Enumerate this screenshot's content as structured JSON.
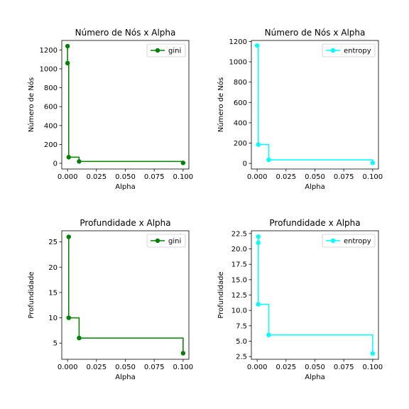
{
  "chart_data": [
    {
      "type": "line",
      "step": "post",
      "title": "Número de Nós x Alpha",
      "xlabel": "Alpha",
      "ylabel": "Número de Nós",
      "xlim": [
        -0.005,
        0.105
      ],
      "ylim": [
        -60,
        1300
      ],
      "xticks": [
        0.0,
        0.025,
        0.05,
        0.075,
        0.1
      ],
      "xtick_labels": [
        "0.000",
        "0.025",
        "0.050",
        "0.075",
        "0.100"
      ],
      "yticks": [
        0,
        200,
        400,
        600,
        800,
        1000,
        1200
      ],
      "ytick_labels": [
        "0",
        "200",
        "400",
        "600",
        "800",
        "1000",
        "1200"
      ],
      "legend": "top-right",
      "series": [
        {
          "name": "gini",
          "color": "#008000",
          "x": [
            0.0,
            0.0,
            0.001,
            0.01,
            0.1
          ],
          "y": [
            1240,
            1060,
            65,
            20,
            5
          ]
        }
      ]
    },
    {
      "type": "line",
      "step": "post",
      "title": "Número de Nós x Alpha",
      "xlabel": "Alpha",
      "ylabel": "Número de Nós",
      "xlim": [
        -0.005,
        0.105
      ],
      "ylim": [
        -55,
        1210
      ],
      "xticks": [
        0.0,
        0.025,
        0.05,
        0.075,
        0.1
      ],
      "xtick_labels": [
        "0.000",
        "0.025",
        "0.050",
        "0.075",
        "0.100"
      ],
      "yticks": [
        0,
        200,
        400,
        600,
        800,
        1000,
        1200
      ],
      "ytick_labels": [
        "0",
        "200",
        "400",
        "600",
        "800",
        "1000",
        "1200"
      ],
      "legend": "top-right",
      "series": [
        {
          "name": "entropy",
          "color": "#00ffff",
          "x": [
            0.0,
            0.001,
            0.01,
            0.1
          ],
          "y": [
            1160,
            185,
            35,
            5
          ]
        }
      ]
    },
    {
      "type": "line",
      "step": "post",
      "title": "Profundidade x Alpha",
      "xlabel": "Alpha",
      "ylabel": "Profundidade",
      "xlim": [
        -0.005,
        0.105
      ],
      "ylim": [
        1.8,
        27.2
      ],
      "xticks": [
        0.0,
        0.025,
        0.05,
        0.075,
        0.1
      ],
      "xtick_labels": [
        "0.000",
        "0.025",
        "0.050",
        "0.075",
        "0.100"
      ],
      "yticks": [
        5,
        10,
        15,
        20,
        25
      ],
      "ytick_labels": [
        "5",
        "10",
        "15",
        "20",
        "25"
      ],
      "legend": "top-right",
      "series": [
        {
          "name": "gini",
          "color": "#008000",
          "x": [
            0.001,
            0.001,
            0.01,
            0.1
          ],
          "y": [
            26,
            10,
            6,
            3
          ]
        }
      ]
    },
    {
      "type": "line",
      "step": "post",
      "title": "Profundidade x Alpha",
      "xlabel": "Alpha",
      "ylabel": "Profundidade",
      "xlim": [
        -0.005,
        0.105
      ],
      "ylim": [
        2.05,
        22.95
      ],
      "xticks": [
        0.0,
        0.025,
        0.05,
        0.075,
        0.1
      ],
      "xtick_labels": [
        "0.000",
        "0.025",
        "0.050",
        "0.075",
        "0.100"
      ],
      "yticks": [
        2.5,
        5.0,
        7.5,
        10.0,
        12.5,
        15.0,
        17.5,
        20.0,
        22.5
      ],
      "ytick_labels": [
        "2.5",
        "5.0",
        "7.5",
        "10.0",
        "12.5",
        "15.0",
        "17.5",
        "20.0",
        "22.5"
      ],
      "legend": "top-right",
      "series": [
        {
          "name": "entropy",
          "color": "#00ffff",
          "x": [
            0.001,
            0.001,
            0.001,
            0.01,
            0.1
          ],
          "y": [
            22,
            21,
            11,
            6,
            3
          ]
        }
      ]
    }
  ]
}
